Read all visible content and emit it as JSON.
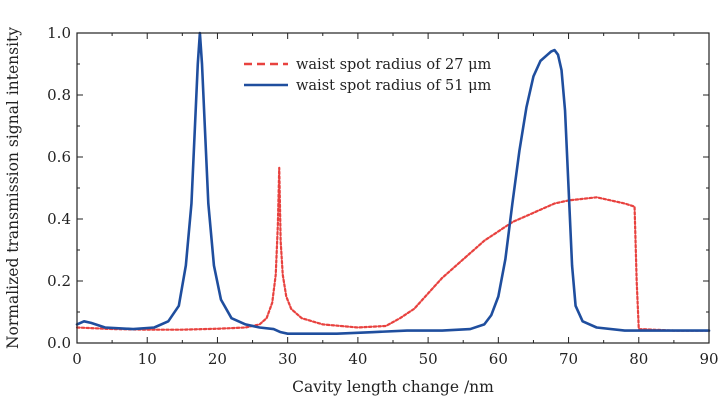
{
  "chart_data": {
    "type": "line",
    "title": "",
    "xlabel": "Cavity length change /nm",
    "ylabel": "Normalized transmission signal intensity",
    "xlim": [
      0,
      90
    ],
    "ylim": [
      0,
      1.0
    ],
    "xticks": [
      "0",
      "10",
      "20",
      "30",
      "40",
      "50",
      "60",
      "70",
      "80",
      "90"
    ],
    "yticks": [
      "0.0",
      "0.2",
      "0.4",
      "0.6",
      "0.8",
      "1.0"
    ],
    "grid": false,
    "legend_position": "top-center",
    "series": [
      {
        "name": "waist spot radius of 27 μm",
        "color": "#e8423f",
        "dash": "dashed",
        "x": [
          0,
          5,
          10,
          15,
          20,
          24,
          26,
          27,
          27.8,
          28.3,
          28.6,
          28.8,
          29.0,
          29.3,
          29.8,
          30.5,
          32,
          35,
          40,
          44,
          46,
          48,
          50,
          52,
          54,
          56,
          58,
          60,
          62,
          64,
          66,
          68,
          70,
          72,
          74,
          76,
          78,
          79.4,
          79.7,
          80,
          85,
          90
        ],
        "y": [
          0.05,
          0.045,
          0.043,
          0.043,
          0.046,
          0.05,
          0.06,
          0.08,
          0.13,
          0.22,
          0.38,
          0.565,
          0.33,
          0.22,
          0.15,
          0.11,
          0.08,
          0.06,
          0.05,
          0.055,
          0.08,
          0.11,
          0.16,
          0.21,
          0.25,
          0.29,
          0.33,
          0.36,
          0.39,
          0.41,
          0.43,
          0.45,
          0.46,
          0.465,
          0.47,
          0.46,
          0.45,
          0.44,
          0.2,
          0.045,
          0.04,
          0.04
        ]
      },
      {
        "name": "waist spot radius of 51 μm",
        "color": "#1f4e9e",
        "dash": "solid",
        "x": [
          0,
          1,
          2,
          4,
          8,
          11,
          13,
          14.5,
          15.5,
          16.3,
          16.8,
          17.2,
          17.5,
          17.8,
          18.2,
          18.7,
          19.5,
          20.5,
          22,
          24,
          26,
          28,
          29,
          30,
          33,
          37,
          42,
          47,
          52,
          56,
          58,
          59,
          60,
          61,
          62,
          63,
          64,
          65,
          66,
          67,
          67.5,
          68,
          68.5,
          69,
          69.5,
          70,
          70.5,
          71,
          72,
          74,
          78,
          84,
          90
        ],
        "y": [
          0.06,
          0.07,
          0.065,
          0.05,
          0.045,
          0.05,
          0.07,
          0.12,
          0.25,
          0.45,
          0.7,
          0.9,
          1.0,
          0.9,
          0.7,
          0.45,
          0.25,
          0.14,
          0.08,
          0.06,
          0.05,
          0.045,
          0.035,
          0.03,
          0.03,
          0.03,
          0.035,
          0.04,
          0.04,
          0.045,
          0.06,
          0.09,
          0.15,
          0.27,
          0.45,
          0.62,
          0.76,
          0.86,
          0.91,
          0.93,
          0.94,
          0.945,
          0.93,
          0.88,
          0.75,
          0.5,
          0.25,
          0.12,
          0.07,
          0.05,
          0.04,
          0.04,
          0.04
        ]
      }
    ]
  }
}
